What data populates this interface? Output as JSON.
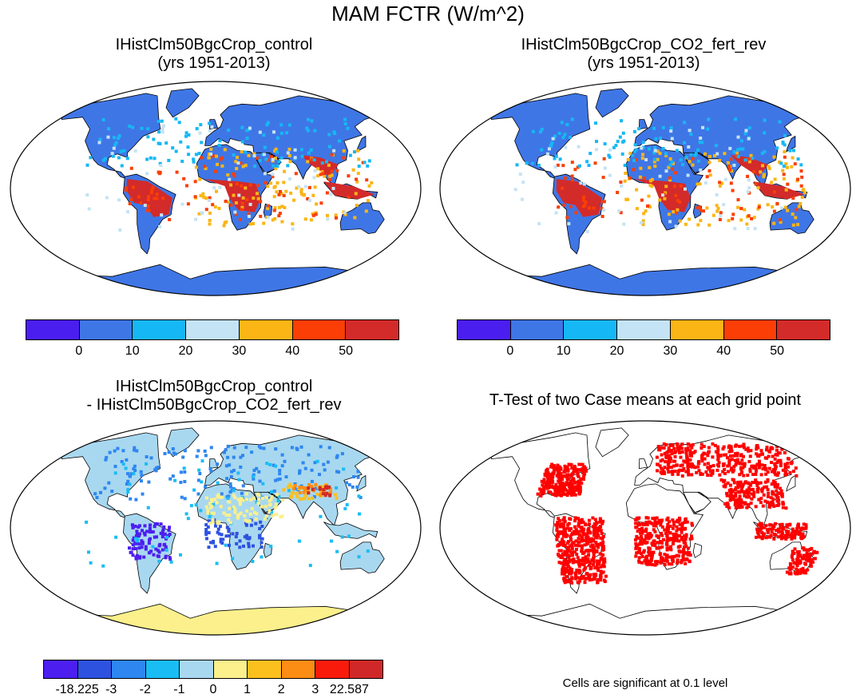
{
  "title": "MAM FCTR (W/m^2)",
  "panels": {
    "tl": {
      "title_line1": "IHistClm50BgcCrop_control",
      "title_line2": "(yrs 1951-2013)"
    },
    "tr": {
      "title_line1": "IHistClm50BgcCrop_CO2_fert_rev",
      "title_line2": "(yrs 1951-2013)"
    },
    "bl": {
      "title_line1": "IHistClm50BgcCrop_control",
      "title_line2": "- IHistClm50BgcCrop_CO2_fert_rev"
    },
    "br": {
      "title_line1": "T-Test of two Case means at each grid point",
      "note": "Cells are significant at 0.1 level"
    }
  },
  "colorbar_abs": {
    "colors": [
      "#4b1ef0",
      "#3f76e6",
      "#15b8f4",
      "#c4e3f4",
      "#fbb515",
      "#fa3e05",
      "#d32a2a"
    ],
    "ticks": [
      "0",
      "10",
      "20",
      "30",
      "40",
      "50"
    ]
  },
  "colorbar_diff": {
    "colors": [
      "#4c1ff0",
      "#2e52e0",
      "#2e86f0",
      "#19bdf4",
      "#a8d8f0",
      "#fbf08c",
      "#fbc01e",
      "#fb8c14",
      "#f81b0c",
      "#d02828"
    ],
    "ticks": [
      "-18.225",
      "-3",
      "-2",
      "-1",
      "0",
      "1",
      "2",
      "3",
      "22.587"
    ]
  },
  "colors": {
    "ocean": "#ffffff",
    "land_base": "#3f76e6",
    "tropical_high": "#d32a2a",
    "significant": "#ff0000",
    "diff_base": "#a8d8f0",
    "antarctica_diff": "#fbf08c"
  }
}
